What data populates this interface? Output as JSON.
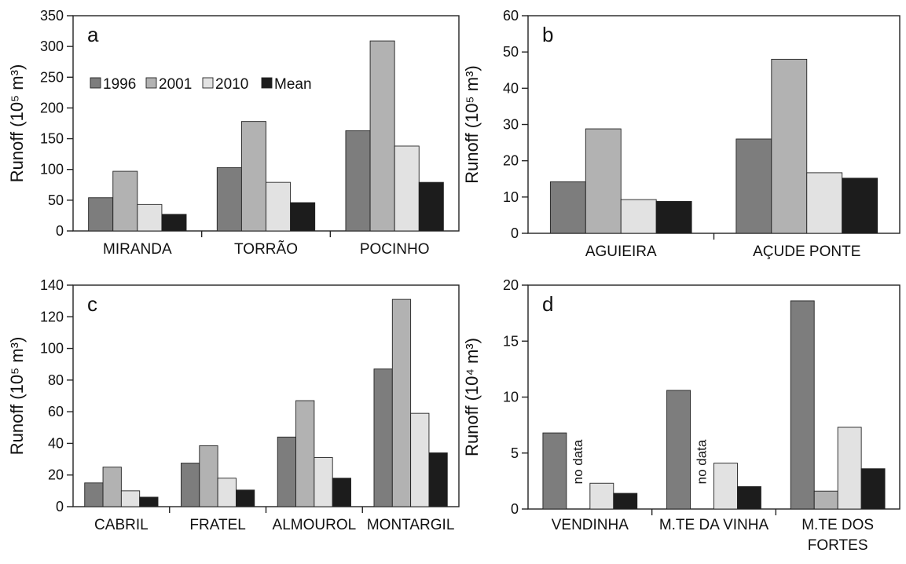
{
  "chart_data": [
    {
      "type": "bar",
      "panel_label": "a",
      "ylabel": "Runoff (10⁵ m³)",
      "ylim": [
        0,
        350
      ],
      "yticks": [
        "0",
        "50",
        "100",
        "150",
        "200",
        "250",
        "300",
        "350"
      ],
      "categories": [
        "MIRANDA",
        "TORRÃO",
        "POCINHO"
      ],
      "legend": {
        "placement": "top-left"
      },
      "series": [
        {
          "name": "1996",
          "values": [
            54,
            103,
            163
          ]
        },
        {
          "name": "2001",
          "values": [
            97,
            178,
            309
          ]
        },
        {
          "name": "2010",
          "values": [
            43,
            79,
            138
          ]
        },
        {
          "name": "Mean",
          "values": [
            27,
            46,
            79
          ]
        }
      ]
    },
    {
      "type": "bar",
      "panel_label": "b",
      "ylabel": "Runoff (10⁵ m³)",
      "ylim": [
        0,
        60
      ],
      "yticks": [
        "0",
        "10",
        "20",
        "30",
        "40",
        "50",
        "60"
      ],
      "categories": [
        "AGUIEIRA",
        "AÇUDE PONTE"
      ],
      "series": [
        {
          "name": "1996",
          "values": [
            14.2,
            26
          ]
        },
        {
          "name": "2001",
          "values": [
            28.8,
            48
          ]
        },
        {
          "name": "2010",
          "values": [
            9.3,
            16.7
          ]
        },
        {
          "name": "Mean",
          "values": [
            8.8,
            15.2
          ]
        }
      ]
    },
    {
      "type": "bar",
      "panel_label": "c",
      "ylabel": "Runoff (10⁵ m³)",
      "ylim": [
        0,
        140
      ],
      "yticks": [
        "0",
        "20",
        "40",
        "60",
        "80",
        "100",
        "120",
        "140"
      ],
      "categories": [
        "CABRIL",
        "FRATEL",
        "ALMOUROL",
        "MONTARGIL"
      ],
      "series": [
        {
          "name": "1996",
          "values": [
            15,
            27.5,
            44,
            87
          ]
        },
        {
          "name": "2001",
          "values": [
            25,
            38.5,
            67,
            131
          ]
        },
        {
          "name": "2010",
          "values": [
            10,
            18,
            31,
            59
          ]
        },
        {
          "name": "Mean",
          "values": [
            6,
            10.5,
            18,
            34
          ]
        }
      ]
    },
    {
      "type": "bar",
      "panel_label": "d",
      "ylabel": "Runoff (10⁴ m³)",
      "ylim": [
        0,
        20
      ],
      "yticks": [
        "0",
        "5",
        "10",
        "15",
        "20"
      ],
      "categories": [
        "VENDINHA",
        "M.TE DA VINHA",
        "M.TE DOS FORTES"
      ],
      "annotation": "no data",
      "series": [
        {
          "name": "1996",
          "values": [
            6.8,
            10.6,
            18.6
          ]
        },
        {
          "name": "2001",
          "values": [
            null,
            null,
            1.6
          ]
        },
        {
          "name": "2010",
          "values": [
            2.3,
            4.1,
            7.3
          ]
        },
        {
          "name": "Mean",
          "values": [
            1.4,
            2.0,
            3.6
          ]
        }
      ]
    }
  ],
  "colors": {
    "1996": "#7d7d7d",
    "2001": "#b2b2b2",
    "2010": "#e2e2e2",
    "Mean": "#1c1c1c",
    "outline": "#222222"
  }
}
